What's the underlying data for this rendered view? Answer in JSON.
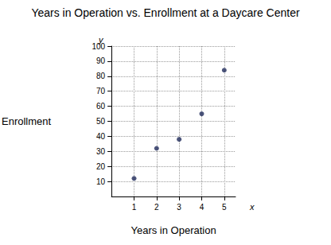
{
  "chart_data": {
    "type": "scatter",
    "title": "Years in Operation vs. Enrollment at a Daycare Center",
    "x_label": "Years in Operation",
    "y_label": "Enrollment",
    "axis_letters": {
      "x": "x",
      "y": "y"
    },
    "x": [
      1,
      2,
      3,
      4,
      5
    ],
    "values": [
      12,
      32,
      38,
      55,
      84
    ],
    "color": "#1f2a5a",
    "xlim": [
      0,
      5.5
    ],
    "xticks": [
      1,
      2,
      3,
      4,
      5
    ],
    "ylim": [
      0,
      100
    ],
    "yticks": [
      10,
      20,
      30,
      40,
      50,
      60,
      70,
      80,
      90,
      100
    ],
    "grid": true,
    "marker": "circle"
  }
}
